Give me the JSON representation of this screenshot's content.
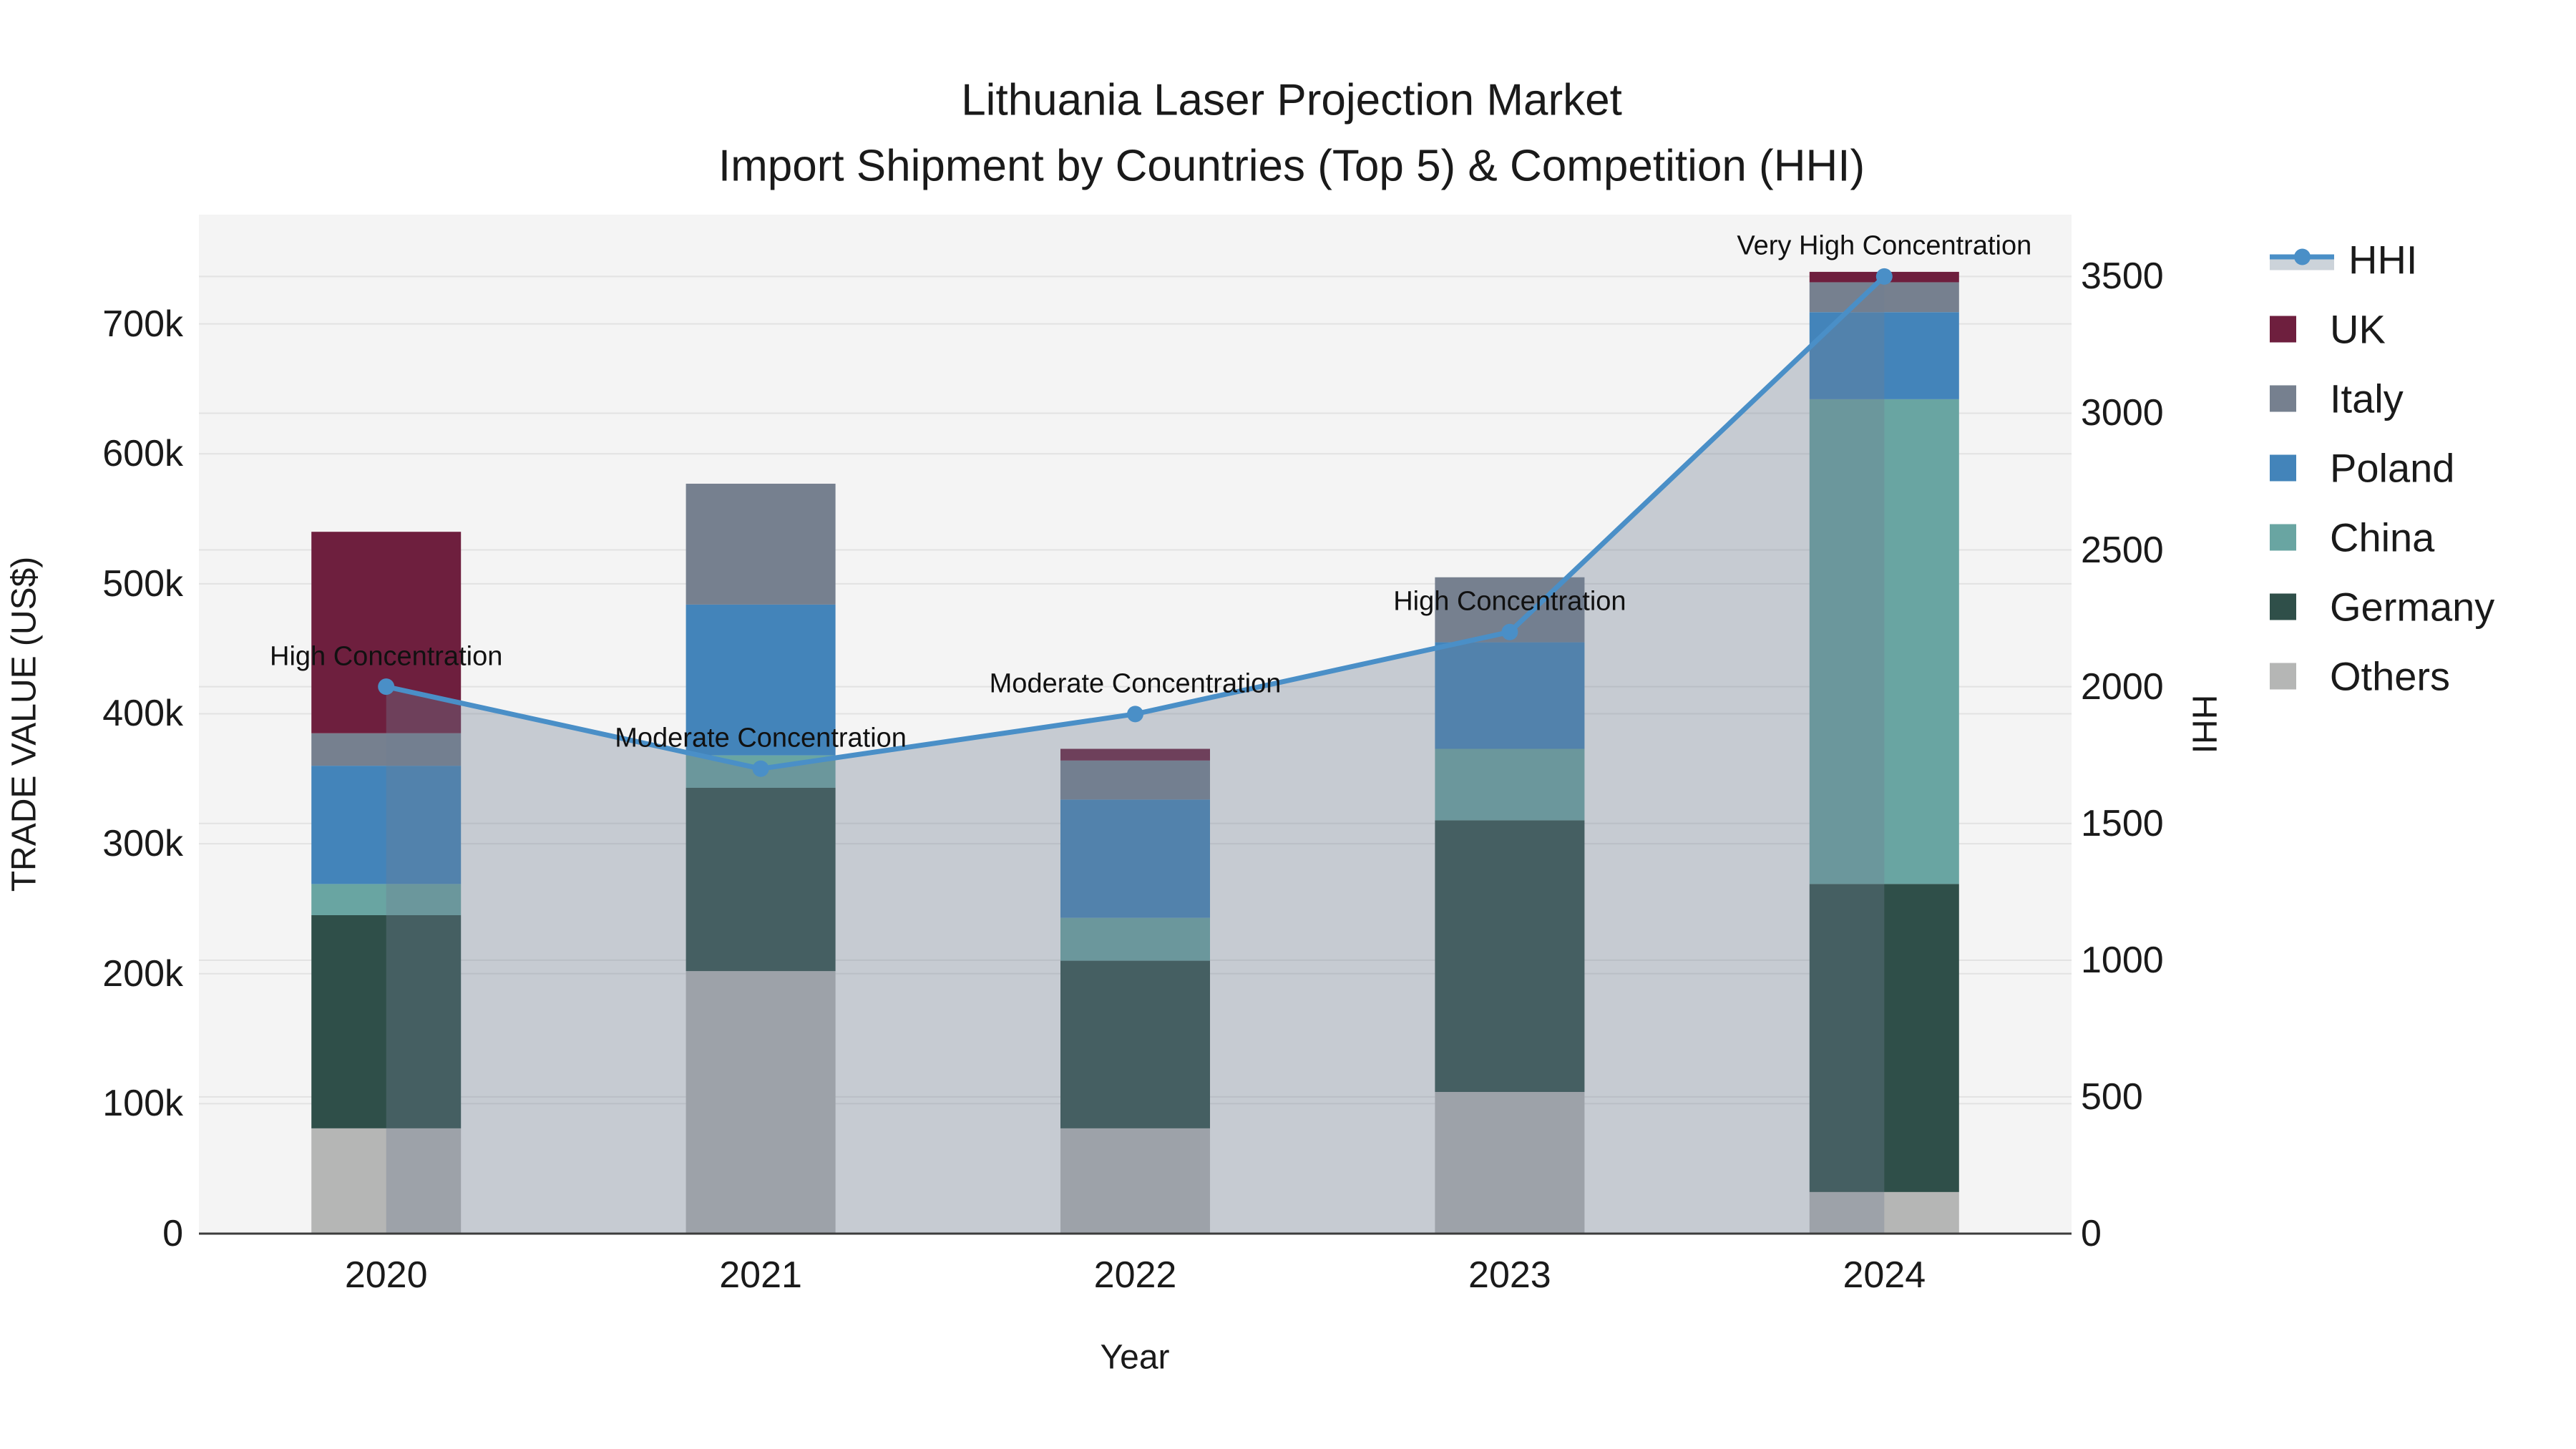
{
  "title": {
    "line1": "Lithuania Laser Projection Market",
    "line2": "Import Shipment by Countries (Top 5) & Competition (HHI)"
  },
  "axes": {
    "y_left": {
      "title": "TRADE VALUE (US$)",
      "tick_labels": [
        "0",
        "100k",
        "200k",
        "300k",
        "400k",
        "500k",
        "600k",
        "700k"
      ],
      "tick_values": [
        0,
        100000,
        200000,
        300000,
        400000,
        500000,
        600000,
        700000
      ]
    },
    "y_right": {
      "title": "HHI",
      "tick_labels": [
        "0",
        "500",
        "1000",
        "1500",
        "2000",
        "2500",
        "3000",
        "3500"
      ],
      "tick_values": [
        0,
        500,
        1000,
        1500,
        2000,
        2500,
        3000,
        3500
      ]
    },
    "x": {
      "title": "Year",
      "tick_labels": [
        "2020",
        "2021",
        "2022",
        "2023",
        "2024"
      ]
    }
  },
  "legend": {
    "items": [
      {
        "label": "HHI",
        "type": "line",
        "color": "#4a8fc7"
      },
      {
        "label": "UK",
        "type": "swatch",
        "color": "#6e1f3e"
      },
      {
        "label": "Italy",
        "type": "swatch",
        "color": "#76808f"
      },
      {
        "label": "Poland",
        "type": "swatch",
        "color": "#4384ba"
      },
      {
        "label": "China",
        "type": "swatch",
        "color": "#69a5a2"
      },
      {
        "label": "Germany",
        "type": "swatch",
        "color": "#2f4f49"
      },
      {
        "label": "Others",
        "type": "swatch",
        "color": "#b5b6b5"
      }
    ]
  },
  "colors": {
    "plot_background": "#f4f4f4",
    "gridline": "#e2e2e2",
    "axis_line": "#3c3c3c",
    "hhi_line": "#4a8fc7",
    "hhi_area_fill": "rgba(112,126,146,0.35)",
    "UK": "#6e1f3e",
    "Italy": "#76808f",
    "Poland": "#4384ba",
    "China": "#69a5a2",
    "Germany": "#2f4f49",
    "Others": "#b5b6b5"
  },
  "chart_data": {
    "type": "combo: stacked-bar + line (secondary axis)",
    "title": "Lithuania Laser Projection Market — Import Shipment by Countries (Top 5) & Competition (HHI)",
    "categories": [
      "2020",
      "2021",
      "2022",
      "2023",
      "2024"
    ],
    "series": [
      {
        "name": "UK",
        "axis": "left",
        "values": [
          155000,
          0,
          9000,
          0,
          8000
        ]
      },
      {
        "name": "Italy",
        "axis": "left",
        "values": [
          25000,
          93000,
          30000,
          50000,
          23000
        ]
      },
      {
        "name": "Poland",
        "axis": "left",
        "values": [
          91000,
          116000,
          91000,
          82000,
          67000
        ]
      },
      {
        "name": "China",
        "axis": "left",
        "values": [
          24000,
          25000,
          33000,
          55000,
          373000
        ]
      },
      {
        "name": "Germany",
        "axis": "left",
        "values": [
          164000,
          141000,
          129000,
          209000,
          237000
        ]
      },
      {
        "name": "Others",
        "axis": "left",
        "values": [
          81000,
          202000,
          81000,
          109000,
          32000
        ]
      }
    ],
    "stack_order_bottom_to_top": [
      "Others",
      "Germany",
      "China",
      "Poland",
      "Italy",
      "UK"
    ],
    "bar_totals": [
      540000,
      577000,
      373000,
      505000,
      740000
    ],
    "line_series": {
      "name": "HHI",
      "axis": "right",
      "values": [
        2000,
        1700,
        1900,
        2200,
        3500
      ],
      "area_fill": true
    },
    "annotations": [
      {
        "category": "2020",
        "text": "High Concentration"
      },
      {
        "category": "2021",
        "text": "Moderate Concentration"
      },
      {
        "category": "2022",
        "text": "Moderate Concentration"
      },
      {
        "category": "2023",
        "text": "High Concentration"
      },
      {
        "category": "2024",
        "text": "Very High Concentration"
      }
    ],
    "xlabel": "Year",
    "ylabel": "TRADE VALUE (US$)",
    "y2label": "HHI",
    "ylim": [
      0,
      784000
    ],
    "y2lim": [
      0,
      3726
    ],
    "grid": true,
    "legend_position": "right"
  }
}
